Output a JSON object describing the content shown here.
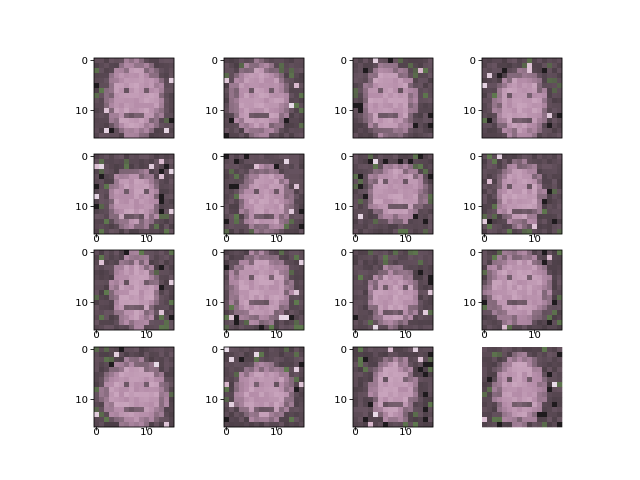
{
  "chart_data": {
    "type": "heatmap",
    "layout": {
      "rows": 4,
      "cols": 4
    },
    "image_size": [
      16,
      16
    ],
    "panels": [
      {
        "xticks": [],
        "yticks": [
          "0",
          "10"
        ],
        "show_axes": true
      },
      {
        "xticks": [],
        "yticks": [
          "0",
          "10"
        ],
        "show_axes": true
      },
      {
        "xticks": [],
        "yticks": [
          "0",
          "10"
        ],
        "show_axes": true
      },
      {
        "xticks": [],
        "yticks": [
          "0",
          "10"
        ],
        "show_axes": true
      },
      {
        "xticks": [
          "0",
          "10"
        ],
        "yticks": [
          "0",
          "10"
        ],
        "show_axes": true
      },
      {
        "xticks": [
          "0",
          "10"
        ],
        "yticks": [
          "0",
          "10"
        ],
        "show_axes": true
      },
      {
        "xticks": [
          "0",
          "10"
        ],
        "yticks": [
          "0",
          "10"
        ],
        "show_axes": true
      },
      {
        "xticks": [
          "0",
          "10"
        ],
        "yticks": [
          "0",
          "10"
        ],
        "show_axes": true
      },
      {
        "xticks": [
          "0",
          "10"
        ],
        "yticks": [
          "0",
          "10"
        ],
        "show_axes": true
      },
      {
        "xticks": [
          "0",
          "10"
        ],
        "yticks": [
          "0",
          "10"
        ],
        "show_axes": true
      },
      {
        "xticks": [
          "0",
          "10"
        ],
        "yticks": [
          "0",
          "10"
        ],
        "show_axes": true
      },
      {
        "xticks": [
          "0",
          "10"
        ],
        "yticks": [
          "0",
          "10"
        ],
        "show_axes": true
      },
      {
        "xticks": [
          "0",
          "10"
        ],
        "yticks": [
          "0",
          "10"
        ],
        "show_axes": true
      },
      {
        "xticks": [
          "0",
          "10"
        ],
        "yticks": [
          "0",
          "10"
        ],
        "show_axes": true
      },
      {
        "xticks": [
          "0",
          "10"
        ],
        "yticks": [
          "0",
          "10"
        ],
        "show_axes": true
      },
      {
        "xticks": [],
        "yticks": [],
        "show_axes": false
      }
    ],
    "palette": {
      "dark": "#4a3d45",
      "mid": "#7a6272",
      "face": "#b48ca8",
      "light": "#d8b6cc",
      "green": "#5f7a4e",
      "black": "#1f1b1e",
      "pale": "#e8dce8"
    }
  }
}
